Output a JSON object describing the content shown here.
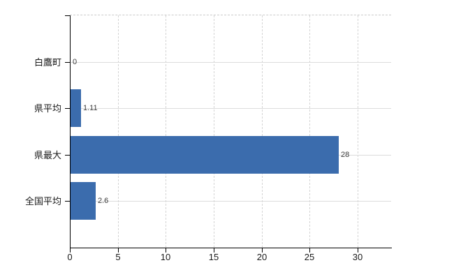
{
  "chart_data": {
    "type": "bar",
    "orientation": "horizontal",
    "title": "",
    "categories": [
      "白鷹町",
      "県平均",
      "県最大",
      "全国平均"
    ],
    "values": [
      0,
      1.11,
      28,
      2.6
    ],
    "value_labels": [
      "0",
      "1.11",
      "28",
      "2.6"
    ],
    "xticks": [
      0,
      5,
      10,
      15,
      20,
      25,
      30
    ],
    "xtick_labels": [
      "0",
      "5",
      "10",
      "15",
      "20",
      "25",
      "30"
    ],
    "xlim": [
      0,
      33.5
    ],
    "grid": true,
    "legend": "none",
    "bar_color": "#3b6cad",
    "axis_color": "#000000",
    "gridline_color": "#dcdcdc",
    "top_border_color": "#c9c9c9"
  }
}
